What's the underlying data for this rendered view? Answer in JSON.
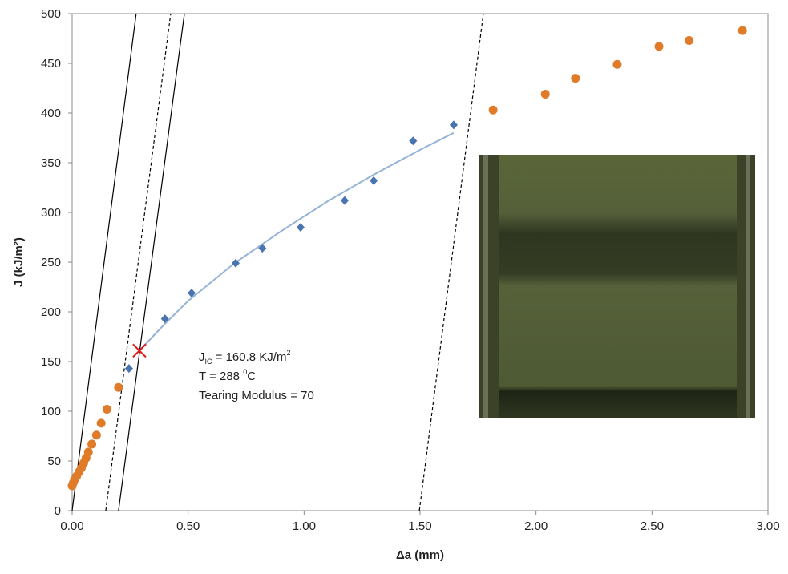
{
  "chart_data": {
    "type": "scatter",
    "xlabel": "Δa (mm)",
    "ylabel": "J (kJ/m²)",
    "xlim": [
      0,
      3
    ],
    "ylim": [
      0,
      500
    ],
    "xticks": [
      {
        "value": 0,
        "label": "0.00"
      },
      {
        "value": 0.5,
        "label": "0.50"
      },
      {
        "value": 1,
        "label": "1.00"
      },
      {
        "value": 1.5,
        "label": "1.50"
      },
      {
        "value": 2,
        "label": "2.00"
      },
      {
        "value": 2.5,
        "label": "2.50"
      },
      {
        "value": 3,
        "label": "3.00"
      }
    ],
    "yticks": [
      0,
      50,
      100,
      150,
      200,
      250,
      300,
      350,
      400,
      450,
      500
    ],
    "grid": false,
    "series": [
      {
        "marker": "line",
        "dash": false,
        "color": "#000000",
        "x": [
          0,
          0.276
        ],
        "values": [
          0,
          500
        ]
      },
      {
        "marker": "line",
        "dash": false,
        "color": "#000000",
        "x": [
          0.2,
          0.484
        ],
        "values": [
          0,
          500
        ]
      },
      {
        "marker": "line",
        "dash": true,
        "color": "#000000",
        "x": [
          0.145,
          0.425
        ],
        "values": [
          0,
          500
        ]
      },
      {
        "marker": "line",
        "dash": true,
        "color": "#000000",
        "x": [
          1.497,
          1.773
        ],
        "values": [
          0,
          500
        ]
      },
      {
        "marker": "line",
        "dash": false,
        "color": "#95b3d7",
        "x": [
          0.29,
          0.4,
          0.5,
          0.7,
          0.9,
          1.1,
          1.3,
          1.5,
          1.645
        ],
        "values": [
          161,
          188,
          211,
          249,
          281,
          311,
          338,
          363,
          380
        ]
      },
      {
        "marker": "circle",
        "color": "#e07b2a",
        "x": [
          0.0,
          0.005,
          0.01,
          0.02,
          0.03,
          0.04,
          0.05,
          0.06,
          0.07,
          0.085,
          0.105,
          0.125,
          0.15,
          0.2,
          1.815,
          2.04,
          2.17,
          2.35,
          2.53,
          2.66,
          2.89
        ],
        "values": [
          25,
          28,
          31,
          35,
          39,
          43,
          48,
          53,
          59,
          67,
          76,
          88,
          102,
          124,
          403,
          419,
          435,
          449,
          467,
          473,
          483
        ]
      },
      {
        "marker": "diamond",
        "color": "#4a74b0",
        "x": [
          0.245,
          0.4,
          0.515,
          0.705,
          0.82,
          0.985,
          1.175,
          1.3,
          1.47,
          1.645
        ],
        "values": [
          143,
          193,
          219,
          249,
          264,
          285,
          312,
          332,
          372,
          388
        ]
      },
      {
        "marker": "x",
        "color": "#e01b1b",
        "x": [
          0.29
        ],
        "values": [
          161
        ]
      }
    ],
    "annotation": {
      "jic": [
        "J",
        "IC",
        " = 160.8 KJ/m",
        "2"
      ],
      "temp": [
        "T = 288 ",
        "0",
        "C"
      ],
      "tearing": "Tearing Modulus = 70"
    }
  }
}
